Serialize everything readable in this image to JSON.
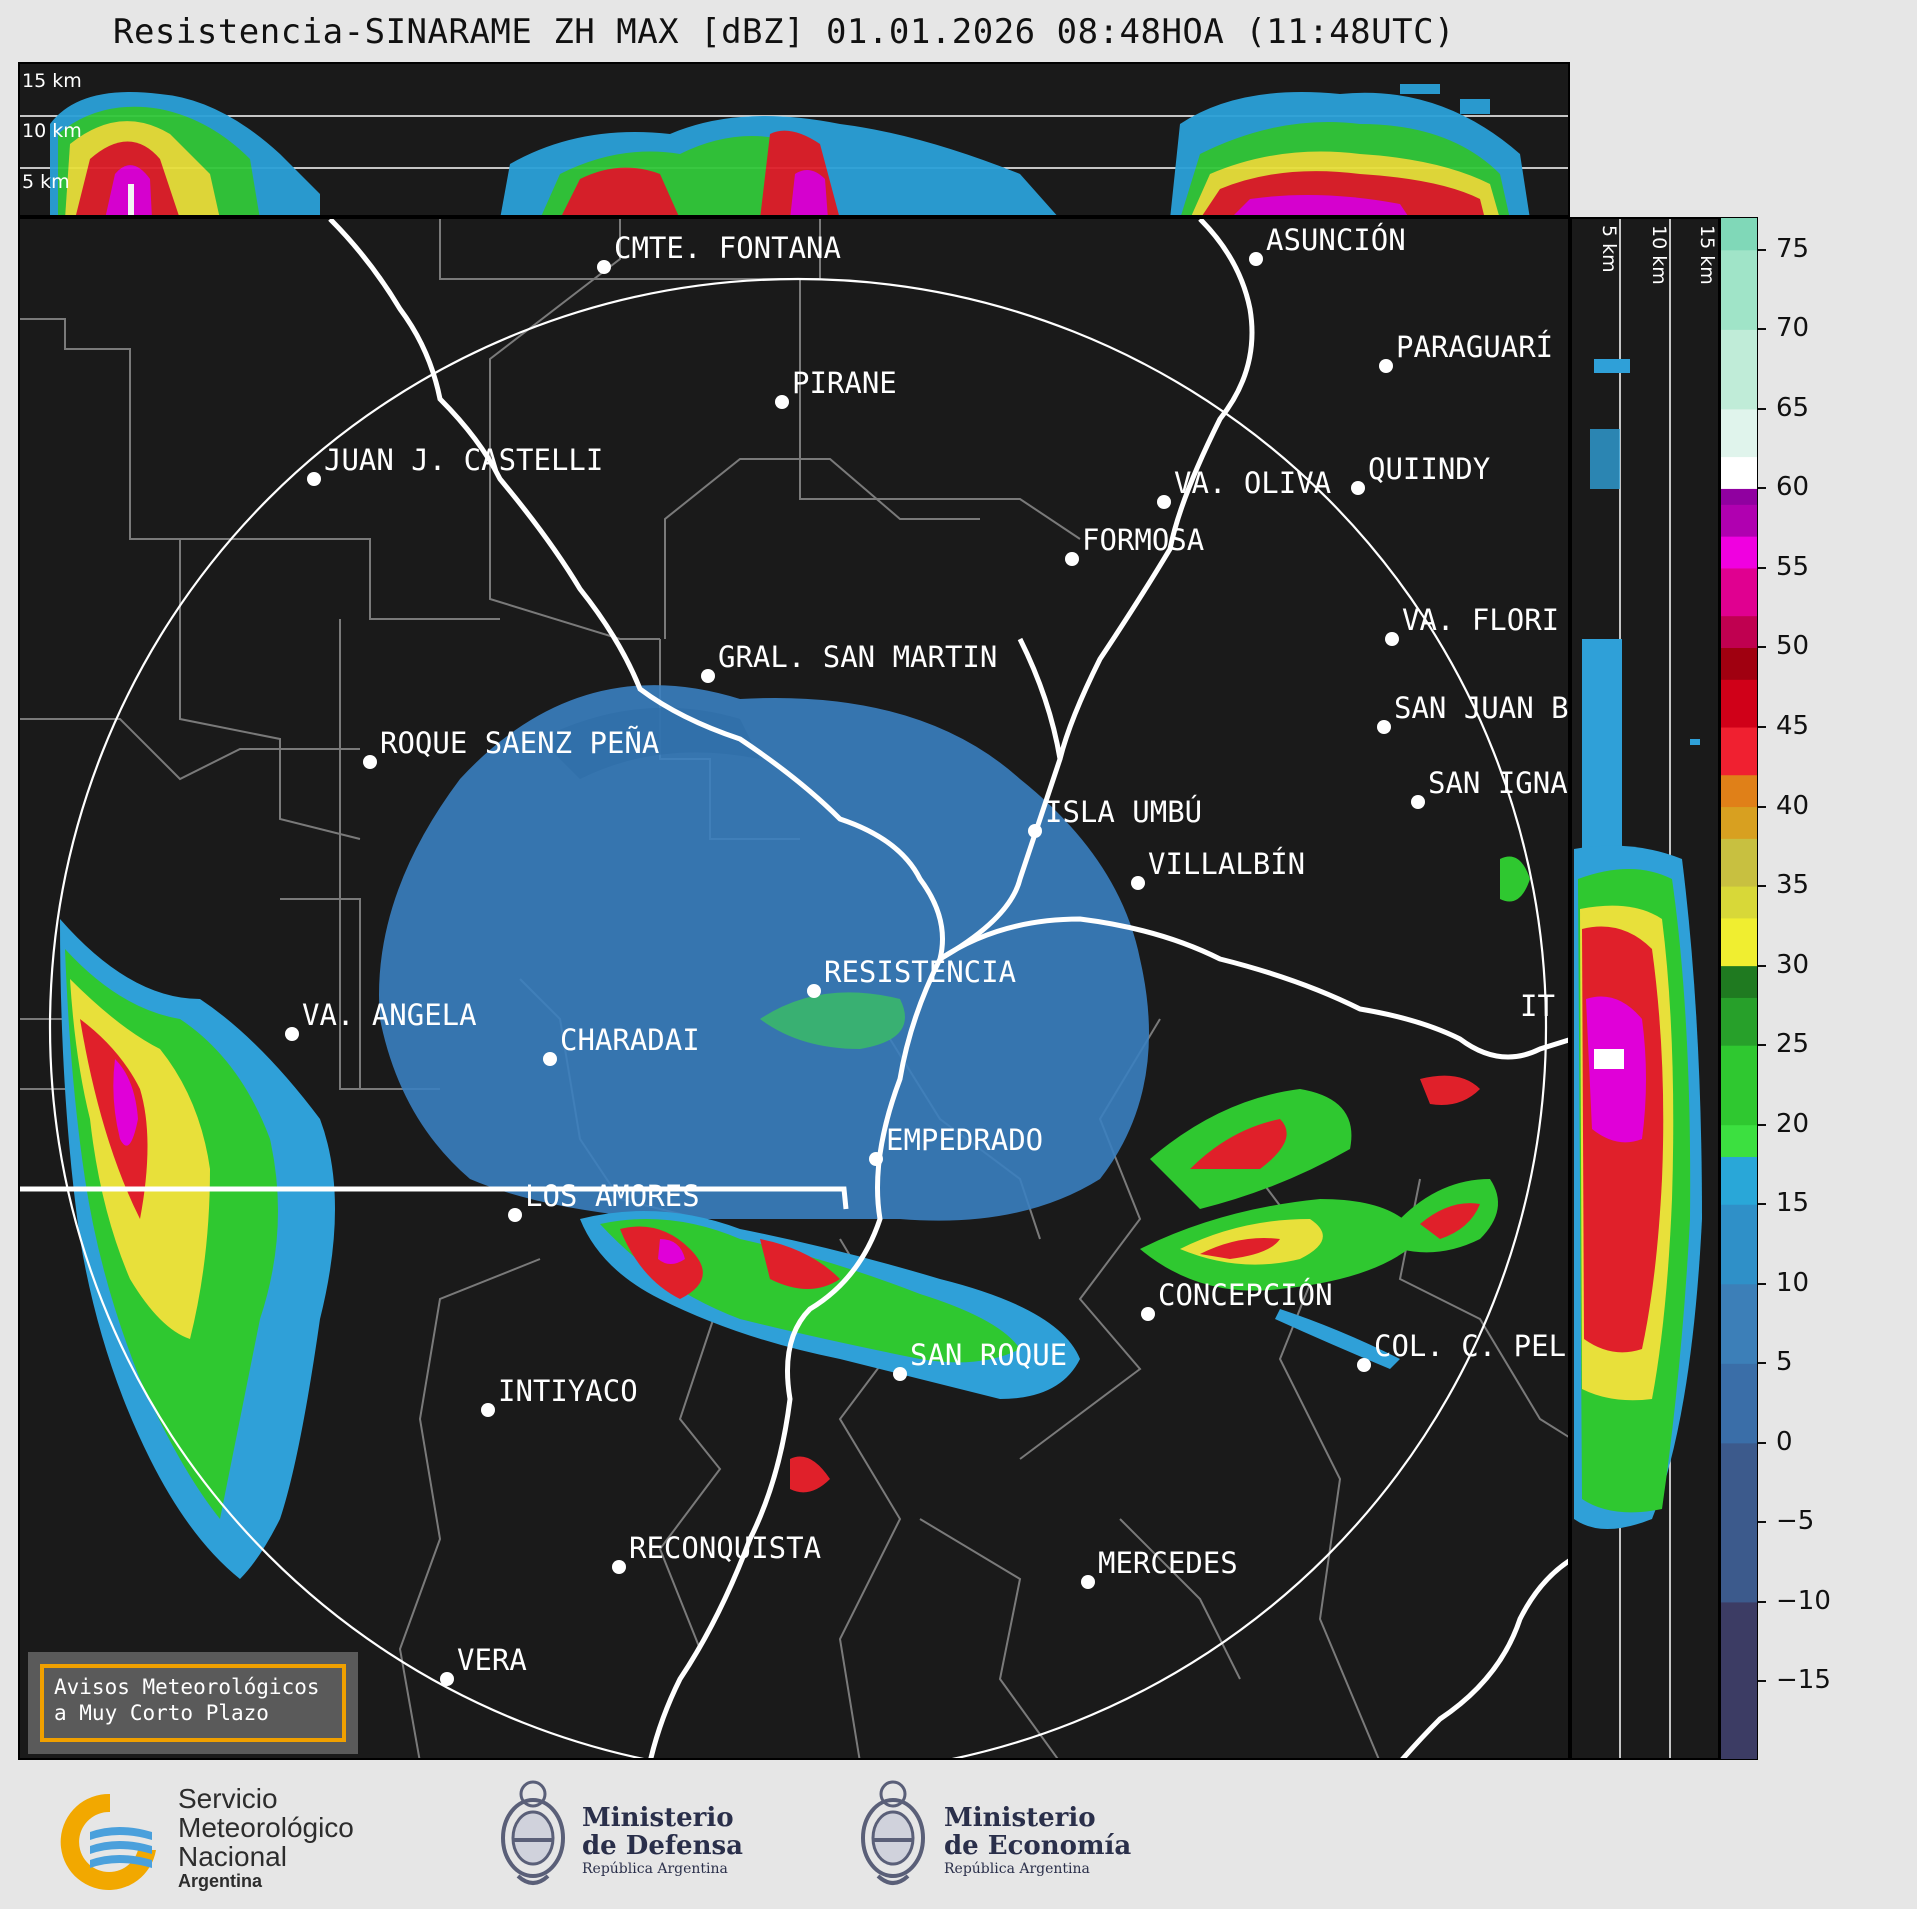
{
  "title": "Resistencia-SINARAME ZH MAX [dBZ] 01.01.2026 08:48HOA (11:48UTC)",
  "altitude_labels": [
    "15 km",
    "10 km",
    "5 km"
  ],
  "cities": [
    {
      "name": "CMTE. FONTANA"
    },
    {
      "name": "PIRANE"
    },
    {
      "name": "JUAN J. CASTELLI"
    },
    {
      "name": "ASUNCIÓN"
    },
    {
      "name": "PARAGUARÍ"
    },
    {
      "name": "VA. OLIVA"
    },
    {
      "name": "QUIINDY"
    },
    {
      "name": "FORMOSA"
    },
    {
      "name": "VA. FLORI"
    },
    {
      "name": "GRAL. SAN MARTIN"
    },
    {
      "name": "SAN JUAN B"
    },
    {
      "name": "ROQUE SAENZ PEÑA"
    },
    {
      "name": "SAN IGNA"
    },
    {
      "name": "ISLA UMBÚ"
    },
    {
      "name": "VILLALBÍN"
    },
    {
      "name": "RESISTENCIA"
    },
    {
      "name": "VA. ANGELA"
    },
    {
      "name": "CHARADAI"
    },
    {
      "name": "IT"
    },
    {
      "name": "EMPEDRADO"
    },
    {
      "name": "LOS AMORES"
    },
    {
      "name": "CONCEPCIÓN"
    },
    {
      "name": "SAN ROQUE"
    },
    {
      "name": "COL. C. PEL"
    },
    {
      "name": "INTIYACO"
    },
    {
      "name": "RECONQUISTA"
    },
    {
      "name": "MERCEDES"
    },
    {
      "name": "VERA"
    }
  ],
  "colorbar": {
    "unit": "dBZ",
    "min": -20,
    "max": 77,
    "ticks": [
      "75",
      "70",
      "65",
      "60",
      "55",
      "50",
      "45",
      "40",
      "35",
      "30",
      "25",
      "20",
      "15",
      "10",
      "5",
      "0",
      "−5",
      "−10",
      "−15"
    ],
    "colors": {
      "-20": "#3c3c64",
      "-10": "#3c5a8c",
      "0": "#3a6ea8",
      "5": "#3c7fb8",
      "10": "#2f90c8",
      "15": "#29a7d8",
      "18": "#3ce040",
      "20": "#2fc830",
      "25": "#27a02a",
      "28": "#1f7a20",
      "30": "#f0ee30",
      "33": "#d8d838",
      "35": "#c8c040",
      "38": "#d8a020",
      "40": "#e08018",
      "42": "#f02030",
      "45": "#d00018",
      "48": "#a00010",
      "50": "#c00050",
      "52": "#e00090",
      "55": "#f000e0",
      "57": "#b000b0",
      "59": "#9000a0",
      "60": "#ffffff",
      "62": "#e0f4ec",
      "65": "#c0ecd8",
      "70": "#a0e4c8",
      "75": "#80d8b8"
    }
  },
  "warning_box": {
    "line1": "Avisos Meteorológicos",
    "line2": "a Muy Corto Plazo"
  },
  "footer": {
    "smn": {
      "l1": "Servicio",
      "l2": "Meteorológico",
      "l3": "Nacional",
      "l4": "Argentina"
    },
    "defensa": {
      "l1": "Ministerio",
      "l2": "de Defensa",
      "l3": "República Argentina"
    },
    "economia": {
      "l1": "Ministerio",
      "l2": "de Economía",
      "l3": "República Argentina"
    }
  }
}
